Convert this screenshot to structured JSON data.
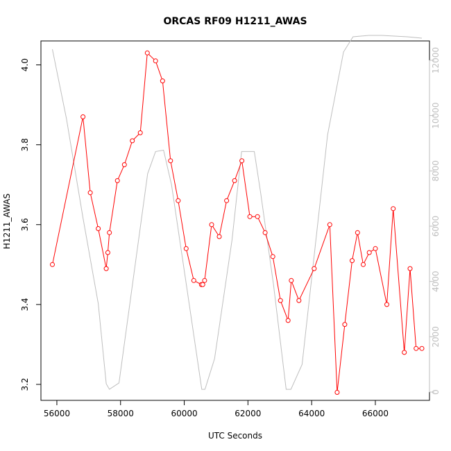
{
  "chart_data": {
    "type": "line",
    "title": "ORCAS RF09 H1211_AWAS",
    "xlabel": "UTC Seconds",
    "ylabel": "H1211_AWAS",
    "xlim": [
      55500,
      67700
    ],
    "ylim": [
      3.16,
      4.06
    ],
    "y2lim": [
      -300,
      12700
    ],
    "x_ticks": [
      "56000",
      "58000",
      "60000",
      "62000",
      "64000",
      "66000"
    ],
    "y_ticks": [
      "3.2",
      "3.4",
      "3.6",
      "3.8",
      "4.0"
    ],
    "y2_ticks": [
      "0",
      "2000",
      "4000",
      "6000",
      "8000",
      "10000",
      "12000"
    ],
    "grid": false,
    "colors": {
      "primary": "#ff0000",
      "secondary": "#bebebe",
      "axis": "#000000"
    },
    "series": [
      {
        "axis": "left",
        "style": "line-with-circle-markers",
        "color": "#ff0000",
        "points": [
          [
            55860,
            3.5
          ],
          [
            56820,
            3.87
          ],
          [
            57050,
            3.68
          ],
          [
            57300,
            3.59
          ],
          [
            57550,
            3.49
          ],
          [
            57600,
            3.53
          ],
          [
            57650,
            3.58
          ],
          [
            57900,
            3.71
          ],
          [
            58120,
            3.75
          ],
          [
            58370,
            3.81
          ],
          [
            58620,
            3.83
          ],
          [
            58840,
            4.03
          ],
          [
            59100,
            4.01
          ],
          [
            59320,
            3.96
          ],
          [
            59570,
            3.76
          ],
          [
            59810,
            3.66
          ],
          [
            60060,
            3.54
          ],
          [
            60300,
            3.46
          ],
          [
            60540,
            3.45
          ],
          [
            60580,
            3.45
          ],
          [
            60640,
            3.46
          ],
          [
            60860,
            3.6
          ],
          [
            61100,
            3.57
          ],
          [
            61330,
            3.66
          ],
          [
            61580,
            3.71
          ],
          [
            61810,
            3.76
          ],
          [
            62060,
            3.62
          ],
          [
            62300,
            3.62
          ],
          [
            62540,
            3.58
          ],
          [
            62780,
            3.52
          ],
          [
            63020,
            3.41
          ],
          [
            63260,
            3.36
          ],
          [
            63360,
            3.46
          ],
          [
            63600,
            3.41
          ],
          [
            64080,
            3.49
          ],
          [
            64570,
            3.6
          ],
          [
            64800,
            3.18
          ],
          [
            65040,
            3.35
          ],
          [
            65270,
            3.51
          ],
          [
            65440,
            3.58
          ],
          [
            65620,
            3.5
          ],
          [
            65810,
            3.53
          ],
          [
            66000,
            3.54
          ],
          [
            66360,
            3.4
          ],
          [
            66560,
            3.64
          ],
          [
            66910,
            3.28
          ],
          [
            67090,
            3.49
          ],
          [
            67280,
            3.29
          ],
          [
            67460,
            3.29
          ]
        ]
      },
      {
        "axis": "right",
        "style": "line",
        "color": "#bebebe",
        "points": [
          [
            55860,
            12400
          ],
          [
            56300,
            9900
          ],
          [
            56820,
            6300
          ],
          [
            57300,
            3200
          ],
          [
            57550,
            300
          ],
          [
            57650,
            100
          ],
          [
            57950,
            330
          ],
          [
            58850,
            7900
          ],
          [
            59100,
            8700
          ],
          [
            59350,
            8750
          ],
          [
            59600,
            7500
          ],
          [
            60050,
            4000
          ],
          [
            60550,
            100
          ],
          [
            60650,
            100
          ],
          [
            60950,
            1200
          ],
          [
            61500,
            5500
          ],
          [
            61800,
            8700
          ],
          [
            62200,
            8700
          ],
          [
            62400,
            7200
          ],
          [
            62800,
            3900
          ],
          [
            63200,
            100
          ],
          [
            63350,
            100
          ],
          [
            63700,
            1000
          ],
          [
            64500,
            9300
          ],
          [
            64800,
            11100
          ],
          [
            65000,
            12300
          ],
          [
            65300,
            12850
          ],
          [
            65800,
            12900
          ],
          [
            66200,
            12900
          ],
          [
            67000,
            12850
          ],
          [
            67460,
            12800
          ]
        ]
      }
    ]
  }
}
